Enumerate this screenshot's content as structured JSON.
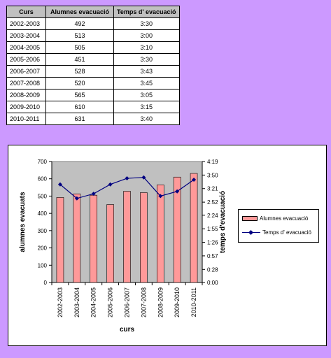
{
  "table": {
    "headers": [
      "Curs",
      "Alumnes evacuació",
      "Temps d' evacuació"
    ],
    "rows": [
      [
        "2002-2003",
        "492",
        "3:30"
      ],
      [
        "2003-2004",
        "513",
        "3:00"
      ],
      [
        "2004-2005",
        "505",
        "3:10"
      ],
      [
        "2005-2006",
        "451",
        "3:30"
      ],
      [
        "2006-2007",
        "528",
        "3:43"
      ],
      [
        "2007-2008",
        "520",
        "3:45"
      ],
      [
        "2008-2009",
        "565",
        "3:05"
      ],
      [
        "2009-2010",
        "610",
        "3:15"
      ],
      [
        "2010-2011",
        "631",
        "3:40"
      ]
    ]
  },
  "chart_data": {
    "type": "bar",
    "categories": [
      "2002-2003",
      "2003-2004",
      "2004-2005",
      "2005-2006",
      "2006-2007",
      "2007-2008",
      "2008-2009",
      "2009-2010",
      "2010-2011"
    ],
    "series": [
      {
        "name": "Alumnes evacuació",
        "type": "bar",
        "axis": "left",
        "color": "#ff9999",
        "values": [
          492,
          513,
          505,
          451,
          528,
          520,
          565,
          610,
          631
        ]
      },
      {
        "name": "Temps d' evacuació",
        "type": "line",
        "axis": "right",
        "color": "#000080",
        "marker": "diamond",
        "values": [
          "3:30",
          "3:00",
          "3:10",
          "3:30",
          "3:43",
          "3:45",
          "3:05",
          "3:15",
          "3:40"
        ]
      }
    ],
    "xlabel": "curs",
    "ylabel": "alumnes evacuats",
    "y2label": "temps d'evacuació",
    "ylim": [
      0,
      700
    ],
    "yticks": [
      "0",
      "100",
      "200",
      "300",
      "400",
      "500",
      "600",
      "700"
    ],
    "y2lim": [
      "0:00",
      "4:19"
    ],
    "y2ticks": [
      "0:00",
      "0:28",
      "0:57",
      "1:26",
      "1:55",
      "2:24",
      "2:52",
      "3:21",
      "3:50",
      "4:19"
    ],
    "plot_background": "#c0c0c0",
    "grid": false,
    "legend_position": "right"
  }
}
